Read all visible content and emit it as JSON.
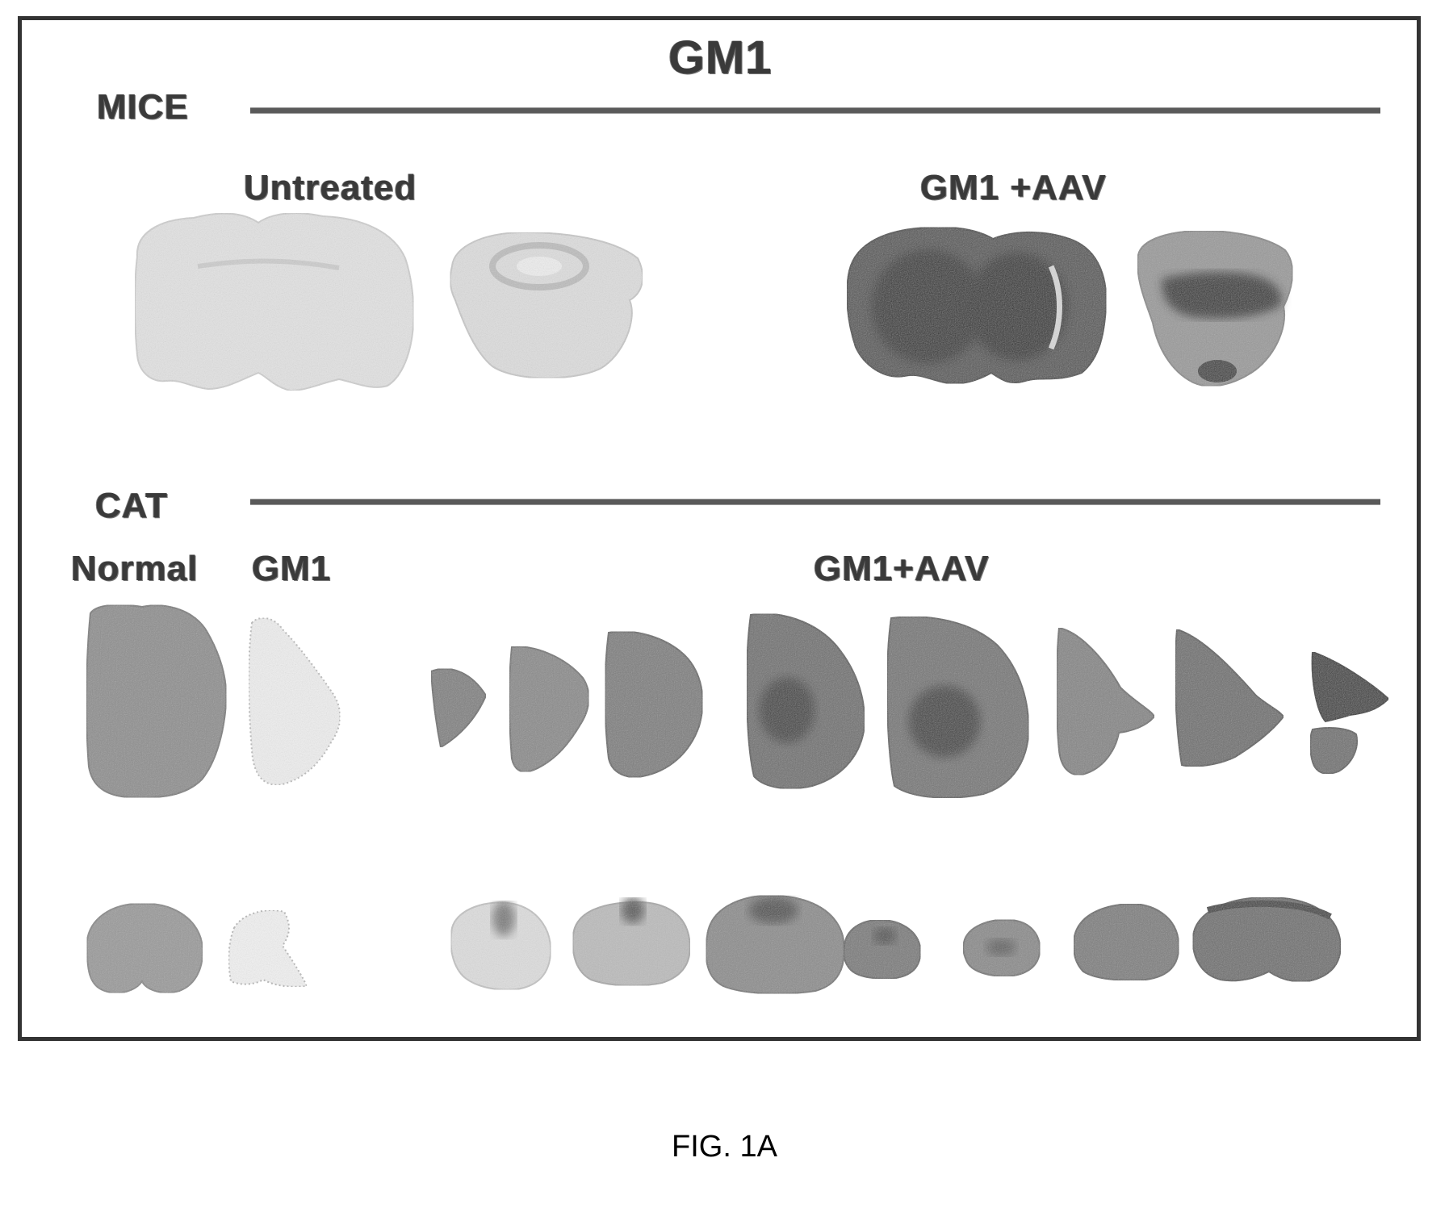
{
  "figure": {
    "title": "GM1",
    "caption": "FIG. 1A"
  },
  "mice": {
    "label": "MICE",
    "groups": [
      {
        "label": "Untreated"
      },
      {
        "label": "GM1 +AAV"
      }
    ]
  },
  "cat": {
    "label": "CAT",
    "groups": [
      {
        "label": "Normal"
      },
      {
        "label": "GM1"
      },
      {
        "label": "GM1+AAV"
      }
    ]
  },
  "colors": {
    "border": "#333333",
    "rule": "#5a5a5a",
    "stain_light": "#dcdcdc",
    "stain_medium": "#8f8f8f",
    "stain_dark": "#3c3c3c"
  }
}
